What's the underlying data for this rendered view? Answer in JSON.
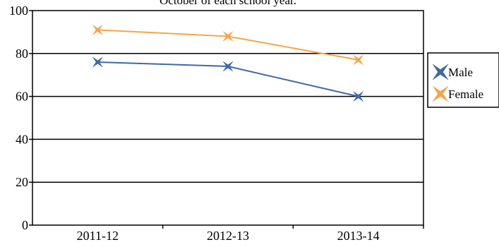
{
  "chart_data": {
    "type": "line",
    "title": "October of each school year.",
    "categories": [
      "2011-12",
      "2012-13",
      "2013-14"
    ],
    "series": [
      {
        "name": "Male",
        "values": [
          76,
          74,
          60
        ],
        "color": "#3d6aa3",
        "marker": "x-star"
      },
      {
        "name": "Female",
        "values": [
          91,
          88,
          77
        ],
        "color": "#f5a54a",
        "marker": "x-star"
      }
    ],
    "ylim": [
      0,
      100
    ],
    "yticks": [
      0,
      20,
      40,
      60,
      80,
      100
    ],
    "grid": "horizontal",
    "legend_position": "right"
  }
}
